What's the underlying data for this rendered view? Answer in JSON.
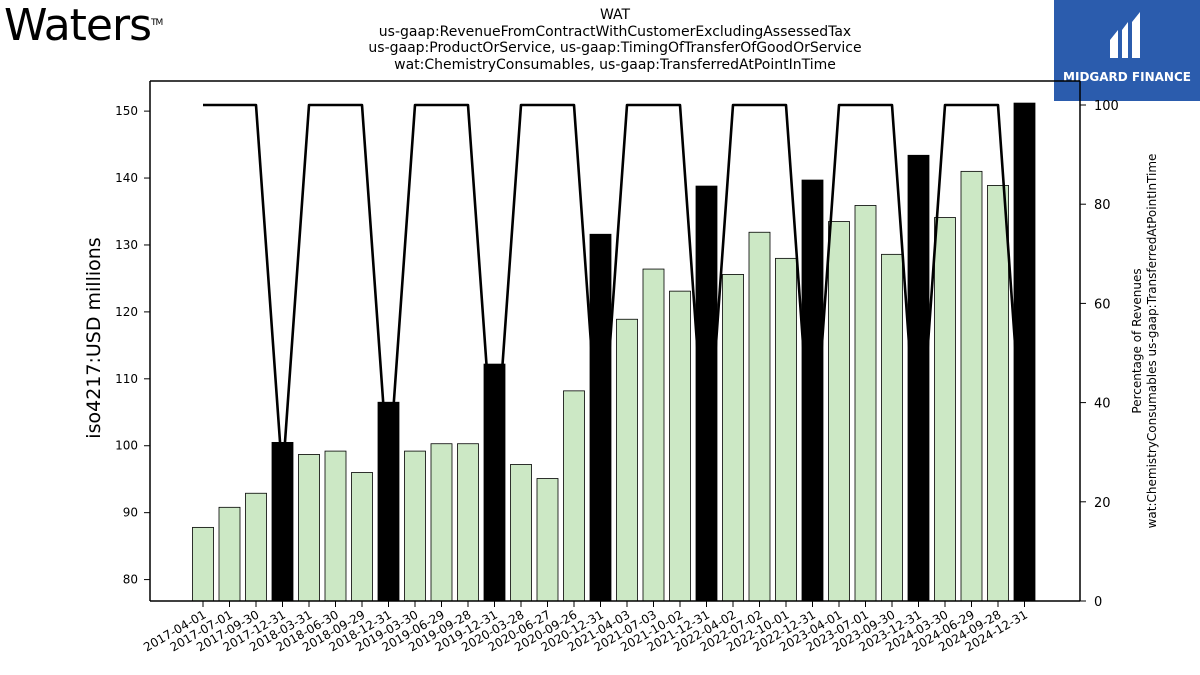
{
  "brand": {
    "logo_text": "Waters",
    "trademark": "TM"
  },
  "sponsor": {
    "name": "MIDGARD FINANCE",
    "accent": "#2b5cad"
  },
  "chart_data": {
    "type": "bar",
    "title_lines": [
      "WAT",
      "us-gaap:RevenueFromContractWithCustomerExcludingAssessedTax",
      "us-gaap:ProductOrService, us-gaap:TimingOfTransferOfGoodOrService",
      "wat:ChemistryConsumables, us-gaap:TransferredAtPointInTime"
    ],
    "ylabel": "iso4217:USD  millions",
    "y2label_lines": [
      "Percentage of Revenues",
      "wat:ChemistryConsumables us-gaap:TransferredAtPointInTime"
    ],
    "ylim": [
      76.8,
      154.5
    ],
    "yticks": [
      80,
      90,
      100,
      110,
      120,
      130,
      140,
      150
    ],
    "y2lim": [
      0,
      100
    ],
    "y2ticks": [
      0,
      20,
      40,
      60,
      80,
      100
    ],
    "categories": [
      "2017-04-01",
      "2017-07-01",
      "2017-09-30",
      "2017-12-31",
      "2018-03-31",
      "2018-06-30",
      "2018-09-29",
      "2018-12-31",
      "2019-03-30",
      "2019-06-29",
      "2019-09-28",
      "2019-12-31",
      "2020-03-28",
      "2020-06-27",
      "2020-09-26",
      "2020-12-31",
      "2021-04-03",
      "2021-07-03",
      "2021-10-02",
      "2021-12-31",
      "2022-04-02",
      "2022-07-02",
      "2022-10-01",
      "2022-12-31",
      "2023-04-01",
      "2023-07-01",
      "2023-09-30",
      "2023-12-31",
      "2024-03-30",
      "2024-06-29",
      "2024-09-28",
      "2024-12-31"
    ],
    "series": [
      {
        "values": [
          87.8,
          90.8,
          92.9,
          100.5,
          98.7,
          99.2,
          96.0,
          106.5,
          99.2,
          100.3,
          100.3,
          112.2,
          97.2,
          95.1,
          108.2,
          131.6,
          118.9,
          126.4,
          123.1,
          138.8,
          125.6,
          131.9,
          128.0,
          139.7,
          133.5,
          135.9,
          128.6,
          143.4,
          134.1,
          141.0,
          138.9,
          151.2
        ]
      },
      {
        "values": [
          100,
          100,
          100,
          25,
          100,
          100,
          100,
          25,
          100,
          100,
          100,
          25,
          100,
          100,
          100,
          25,
          100,
          100,
          100,
          25,
          100,
          100,
          100,
          25,
          100,
          100,
          100,
          25,
          100,
          100,
          100,
          25
        ]
      }
    ],
    "bar_colors": {
      "quarter": "#cce8c5",
      "year_end": "#000000"
    },
    "grid": false,
    "legend": "none"
  }
}
